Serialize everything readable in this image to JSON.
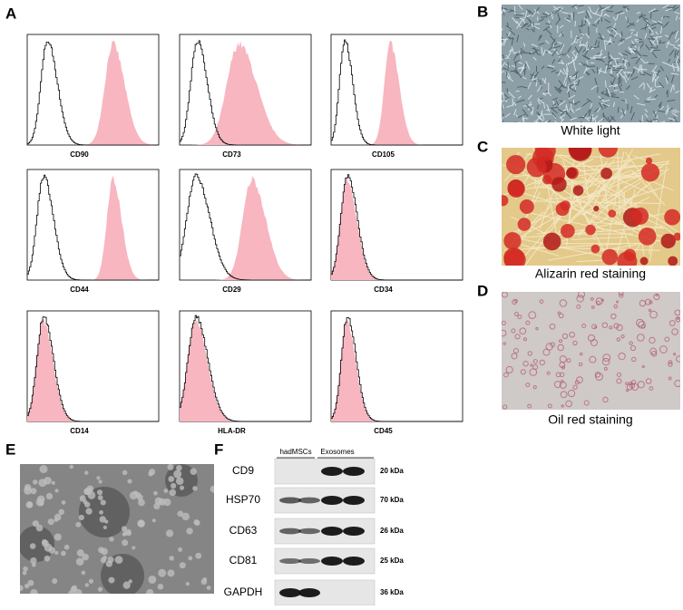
{
  "panel_labels": {
    "a": "A",
    "b": "B",
    "c": "C",
    "d": "D",
    "e": "E",
    "f": "F"
  },
  "flow_panels": [
    {
      "marker": "CD90"
    },
    {
      "marker": "CD73"
    },
    {
      "marker": "CD105"
    },
    {
      "marker": "CD44"
    },
    {
      "marker": "CD29"
    },
    {
      "marker": "CD34"
    },
    {
      "marker": "CD14"
    },
    {
      "marker": "HLA-DR"
    },
    {
      "marker": "CD45"
    }
  ],
  "captions": {
    "b": "White light",
    "c": "Alizarin red staining",
    "d": "Oil red staining"
  },
  "western_blot": {
    "groups": [
      "hadMSCs",
      "Exosomes"
    ],
    "rows": [
      {
        "protein": "CD9",
        "size": "20 kDa"
      },
      {
        "protein": "HSP70",
        "size": "70 kDa"
      },
      {
        "protein": "CD63",
        "size": "26 kDa"
      },
      {
        "protein": "CD81",
        "size": "25 kDa"
      },
      {
        "protein": "GAPDH",
        "size": "36 kDa"
      }
    ]
  }
}
